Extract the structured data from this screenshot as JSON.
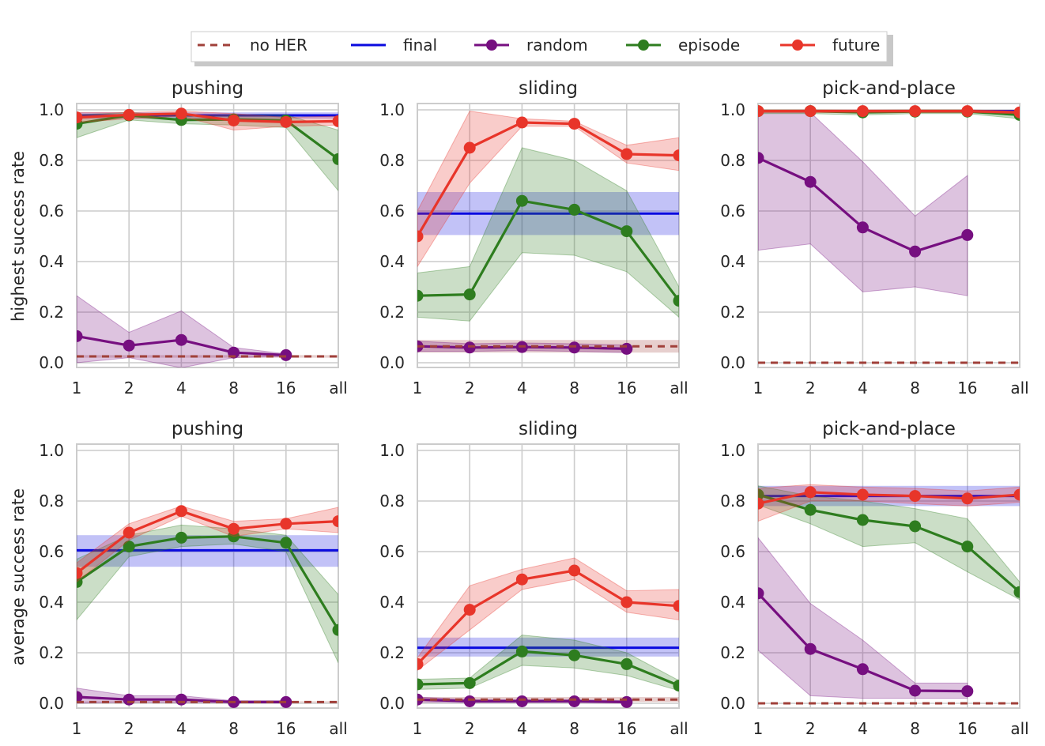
{
  "legend": {
    "entries": [
      {
        "label": "no HER",
        "color": "#a0403a",
        "style": "dashed",
        "marker": false
      },
      {
        "label": "final",
        "color": "#0a0adf",
        "style": "solid",
        "marker": false
      },
      {
        "label": "random",
        "color": "#760f80",
        "style": "solid",
        "marker": true
      },
      {
        "label": "episode",
        "color": "#2e7d1f",
        "style": "solid",
        "marker": true
      },
      {
        "label": "future",
        "color": "#e8352a",
        "style": "solid",
        "marker": true
      }
    ],
    "placement": "top-center"
  },
  "rows": [
    {
      "ylabel": "highest success rate"
    },
    {
      "ylabel": "average success rate"
    }
  ],
  "chart_data": [
    {
      "type": "line",
      "row": 0,
      "col": 0,
      "title": "pushing",
      "categories": [
        "1",
        "2",
        "4",
        "8",
        "16",
        "all"
      ],
      "ylim": [
        0,
        1.0
      ],
      "yticks": [
        "0.0",
        "0.2",
        "0.4",
        "0.6",
        "0.8",
        "1.0"
      ],
      "grid": true,
      "no_her": {
        "value": 0.025,
        "lower": 0.02,
        "upper": 0.03
      },
      "final": {
        "value": 0.978,
        "lower": 0.965,
        "upper": 0.99
      },
      "series": [
        {
          "name": "random",
          "values": [
            0.105,
            0.068,
            0.09,
            0.04,
            0.03,
            null
          ],
          "lower": [
            0.0,
            0.02,
            -0.02,
            0.02,
            0.025,
            null
          ],
          "upper": [
            0.265,
            0.12,
            0.205,
            0.06,
            0.035,
            null
          ]
        },
        {
          "name": "episode",
          "values": [
            0.945,
            0.978,
            0.96,
            0.962,
            0.958,
            0.805
          ],
          "lower": [
            0.89,
            0.96,
            0.945,
            0.94,
            0.93,
            0.68
          ],
          "upper": [
            0.98,
            0.99,
            0.975,
            0.98,
            0.98,
            0.92
          ]
        },
        {
          "name": "future",
          "values": [
            0.97,
            0.98,
            0.985,
            0.958,
            0.952,
            0.955
          ],
          "lower": [
            0.95,
            0.965,
            0.975,
            0.92,
            0.935,
            0.94
          ],
          "upper": [
            0.99,
            0.99,
            0.995,
            0.985,
            0.97,
            0.975
          ]
        }
      ]
    },
    {
      "type": "line",
      "row": 0,
      "col": 1,
      "title": "sliding",
      "categories": [
        "1",
        "2",
        "4",
        "8",
        "16",
        "all"
      ],
      "ylim": [
        0,
        1.0
      ],
      "yticks": [
        "0.0",
        "0.2",
        "0.4",
        "0.6",
        "0.8",
        "1.0"
      ],
      "grid": true,
      "no_her": {
        "value": 0.065,
        "lower": 0.04,
        "upper": 0.09
      },
      "final": {
        "value": 0.59,
        "lower": 0.505,
        "upper": 0.675
      },
      "series": [
        {
          "name": "random",
          "values": [
            0.065,
            0.06,
            0.062,
            0.06,
            0.055,
            null
          ],
          "lower": [
            0.045,
            0.045,
            0.048,
            0.045,
            0.04,
            null
          ],
          "upper": [
            0.085,
            0.075,
            0.078,
            0.075,
            0.07,
            null
          ]
        },
        {
          "name": "episode",
          "values": [
            0.265,
            0.27,
            0.64,
            0.605,
            0.52,
            0.245
          ],
          "lower": [
            0.18,
            0.165,
            0.435,
            0.425,
            0.36,
            0.18
          ],
          "upper": [
            0.355,
            0.38,
            0.85,
            0.8,
            0.68,
            0.3
          ]
        },
        {
          "name": "future",
          "values": [
            0.5,
            0.85,
            0.95,
            0.945,
            0.825,
            0.82
          ],
          "lower": [
            0.38,
            0.71,
            0.935,
            0.935,
            0.79,
            0.76
          ],
          "upper": [
            0.6,
            0.995,
            0.965,
            0.955,
            0.86,
            0.89
          ]
        }
      ]
    },
    {
      "type": "line",
      "row": 0,
      "col": 2,
      "title": "pick-and-place",
      "categories": [
        "1",
        "2",
        "4",
        "8",
        "16",
        "all"
      ],
      "ylim": [
        0,
        1.0
      ],
      "yticks": [
        "0.0",
        "0.2",
        "0.4",
        "0.6",
        "0.8",
        "1.0"
      ],
      "grid": true,
      "no_her": {
        "value": 0.0,
        "lower": 0.0,
        "upper": 0.0
      },
      "final": {
        "value": 0.995,
        "lower": 0.99,
        "upper": 1.0
      },
      "series": [
        {
          "name": "random",
          "values": [
            0.81,
            0.715,
            0.535,
            0.44,
            0.505,
            null
          ],
          "lower": [
            0.445,
            0.47,
            0.28,
            0.3,
            0.265,
            null
          ],
          "upper": [
            0.995,
            0.99,
            0.795,
            0.58,
            0.74,
            null
          ]
        },
        {
          "name": "episode",
          "values": [
            0.995,
            0.995,
            0.99,
            0.993,
            0.993,
            0.98
          ],
          "lower": [
            0.985,
            0.985,
            0.98,
            0.985,
            0.985,
            0.965
          ],
          "upper": [
            1.0,
            1.0,
            0.998,
            1.0,
            1.0,
            0.99
          ]
        },
        {
          "name": "future",
          "values": [
            0.995,
            0.995,
            0.995,
            0.995,
            0.995,
            0.99
          ],
          "lower": [
            0.99,
            0.99,
            0.99,
            0.99,
            0.99,
            0.985
          ],
          "upper": [
            1.0,
            1.0,
            1.0,
            1.0,
            1.0,
            0.995
          ]
        }
      ]
    },
    {
      "type": "line",
      "row": 1,
      "col": 0,
      "title": "pushing",
      "categories": [
        "1",
        "2",
        "4",
        "8",
        "16",
        "all"
      ],
      "ylim": [
        0,
        1.0
      ],
      "yticks": [
        "0.0",
        "0.2",
        "0.4",
        "0.6",
        "0.8",
        "1.0"
      ],
      "grid": true,
      "no_her": {
        "value": 0.005,
        "lower": 0.003,
        "upper": 0.008
      },
      "final": {
        "value": 0.605,
        "lower": 0.54,
        "upper": 0.665
      },
      "series": [
        {
          "name": "random",
          "values": [
            0.025,
            0.015,
            0.015,
            0.005,
            0.005,
            null
          ],
          "lower": [
            0.0,
            0.005,
            0.003,
            0.002,
            0.002,
            null
          ],
          "upper": [
            0.06,
            0.03,
            0.03,
            0.01,
            0.01,
            null
          ]
        },
        {
          "name": "episode",
          "values": [
            0.48,
            0.62,
            0.655,
            0.66,
            0.635,
            0.29
          ],
          "lower": [
            0.33,
            0.58,
            0.62,
            0.63,
            0.6,
            0.16
          ],
          "upper": [
            0.57,
            0.665,
            0.705,
            0.69,
            0.665,
            0.43
          ]
        },
        {
          "name": "future",
          "values": [
            0.515,
            0.675,
            0.76,
            0.69,
            0.71,
            0.72
          ],
          "lower": [
            0.48,
            0.645,
            0.74,
            0.66,
            0.69,
            0.675
          ],
          "upper": [
            0.555,
            0.71,
            0.78,
            0.72,
            0.73,
            0.775
          ]
        }
      ]
    },
    {
      "type": "line",
      "row": 1,
      "col": 1,
      "title": "sliding",
      "categories": [
        "1",
        "2",
        "4",
        "8",
        "16",
        "all"
      ],
      "ylim": [
        0,
        1.0
      ],
      "yticks": [
        "0.0",
        "0.2",
        "0.4",
        "0.6",
        "0.8",
        "1.0"
      ],
      "grid": true,
      "no_her": {
        "value": 0.015,
        "lower": 0.005,
        "upper": 0.025
      },
      "final": {
        "value": 0.22,
        "lower": 0.185,
        "upper": 0.26
      },
      "series": [
        {
          "name": "random",
          "values": [
            0.015,
            0.008,
            0.008,
            0.008,
            0.005,
            null
          ],
          "lower": [
            0.005,
            0.003,
            0.003,
            0.003,
            0.002,
            null
          ],
          "upper": [
            0.025,
            0.015,
            0.015,
            0.015,
            0.01,
            null
          ]
        },
        {
          "name": "episode",
          "values": [
            0.075,
            0.08,
            0.205,
            0.19,
            0.155,
            0.07
          ],
          "lower": [
            0.055,
            0.06,
            0.15,
            0.14,
            0.11,
            0.05
          ],
          "upper": [
            0.095,
            0.1,
            0.27,
            0.25,
            0.2,
            0.09
          ]
        },
        {
          "name": "future",
          "values": [
            0.155,
            0.37,
            0.49,
            0.525,
            0.4,
            0.385
          ],
          "lower": [
            0.13,
            0.29,
            0.45,
            0.49,
            0.36,
            0.33
          ],
          "upper": [
            0.18,
            0.465,
            0.53,
            0.575,
            0.445,
            0.45
          ]
        }
      ]
    },
    {
      "type": "line",
      "row": 1,
      "col": 2,
      "title": "pick-and-place",
      "categories": [
        "1",
        "2",
        "4",
        "8",
        "16",
        "all"
      ],
      "ylim": [
        0,
        1.0
      ],
      "yticks": [
        "0.0",
        "0.2",
        "0.4",
        "0.6",
        "0.8",
        "1.0"
      ],
      "grid": true,
      "no_her": {
        "value": 0.0,
        "lower": 0.0,
        "upper": 0.0
      },
      "final": {
        "value": 0.82,
        "lower": 0.78,
        "upper": 0.86
      },
      "series": [
        {
          "name": "random",
          "values": [
            0.435,
            0.215,
            0.135,
            0.05,
            0.048,
            null
          ],
          "lower": [
            0.21,
            0.03,
            0.02,
            0.02,
            0.02,
            null
          ],
          "upper": [
            0.655,
            0.395,
            0.25,
            0.08,
            0.08,
            null
          ]
        },
        {
          "name": "episode",
          "values": [
            0.825,
            0.765,
            0.725,
            0.7,
            0.62,
            0.44
          ],
          "lower": [
            0.785,
            0.71,
            0.62,
            0.635,
            0.52,
            0.41
          ],
          "upper": [
            0.86,
            0.82,
            0.8,
            0.77,
            0.73,
            0.48
          ]
        },
        {
          "name": "future",
          "values": [
            0.79,
            0.835,
            0.825,
            0.82,
            0.81,
            0.825
          ],
          "lower": [
            0.72,
            0.8,
            0.8,
            0.79,
            0.78,
            0.795
          ],
          "upper": [
            0.85,
            0.865,
            0.855,
            0.85,
            0.84,
            0.855
          ]
        }
      ]
    }
  ]
}
